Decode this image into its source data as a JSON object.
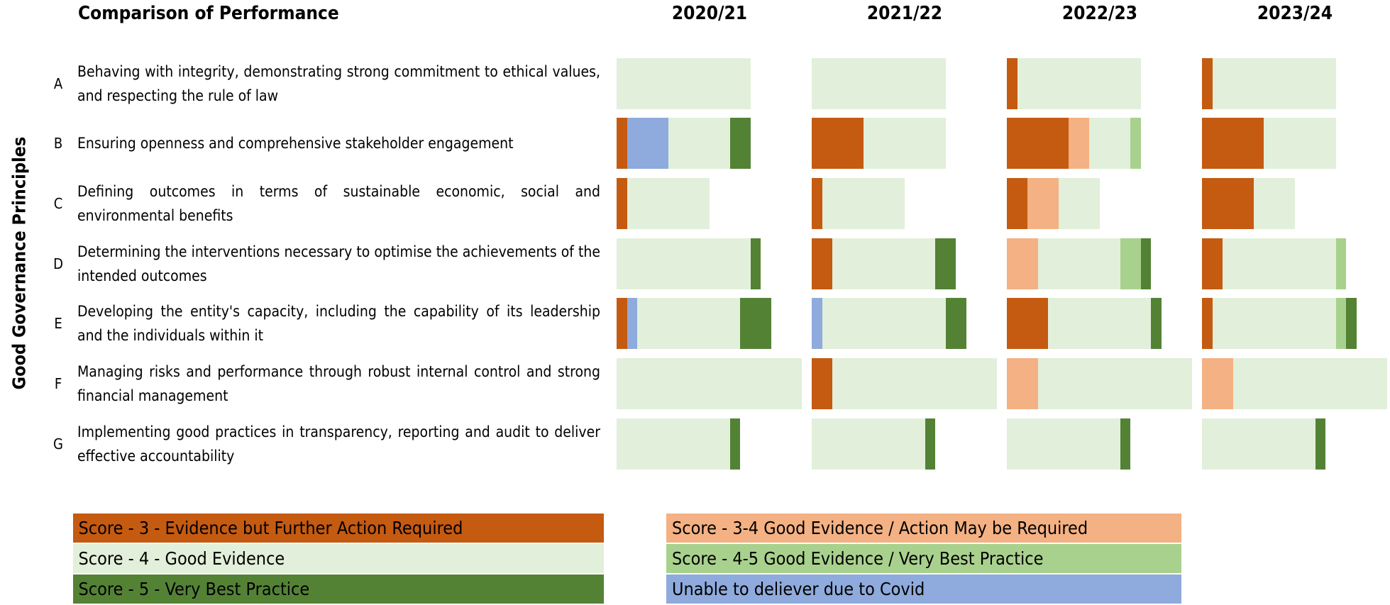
{
  "chart_data": {
    "type": "bar",
    "orientation": "horizontal",
    "stacked": true,
    "title": "Comparison of Performance",
    "y_label": "Good Governance Principles",
    "panels": [
      "2020/21",
      "2021/22",
      "2022/23",
      "2023/24"
    ],
    "categories": [
      "A",
      "B",
      "C",
      "D",
      "E",
      "F",
      "G"
    ],
    "category_descriptions": [
      "Behaving with integrity, demonstrating strong commitment to ethical values, and respecting the rule of law",
      "Ensuring openness and comprehensive stakeholder engagement",
      "Defining outcomes in terms of sustainable economic, social and environmental benefits",
      "Determining the interventions necessary to optimise the achievements of the intended outcomes",
      "Developing the entity's capacity, including the capability of its leadership and the individuals within it",
      "Managing risks and performance through robust internal control and strong financial management",
      "Implementing good practices in transparency, reporting and audit to deliver effective accountability"
    ],
    "series": [
      {
        "name": "Score - 3 - Evidence but Further Action Required",
        "color": "#c55a11",
        "values": [
          [
            0,
            1,
            1,
            0,
            1,
            0,
            0
          ],
          [
            0,
            5,
            1,
            2,
            0,
            2,
            0
          ],
          [
            1,
            6,
            2,
            0,
            4,
            0,
            0
          ],
          [
            1,
            6,
            5,
            2,
            1,
            0,
            0
          ]
        ]
      },
      {
        "name": "Score - 4 - Good Evidence",
        "color": "#e2efda",
        "values": [
          [
            13,
            6,
            8,
            13,
            10,
            18,
            11
          ],
          [
            13,
            8,
            8,
            10,
            12,
            16,
            11
          ],
          [
            12,
            4,
            4,
            8,
            10,
            15,
            11
          ],
          [
            12,
            7,
            4,
            11,
            12,
            15,
            11
          ]
        ]
      },
      {
        "name": "Score - 5 - Very Best Practice",
        "color": "#548235",
        "values": [
          [
            0,
            2,
            0,
            1,
            3,
            0,
            1
          ],
          [
            0,
            0,
            0,
            2,
            2,
            0,
            1
          ],
          [
            0,
            0,
            0,
            1,
            1,
            0,
            1
          ],
          [
            0,
            0,
            0,
            0,
            1,
            0,
            1
          ]
        ]
      },
      {
        "name": "Score - 3-4  Good Evidence / Action May be Required",
        "color": "#f4b183",
        "values": [
          [
            0,
            0,
            0,
            0,
            0,
            0,
            0
          ],
          [
            0,
            0,
            0,
            0,
            0,
            0,
            0
          ],
          [
            0,
            2,
            3,
            3,
            0,
            3,
            0
          ],
          [
            0,
            0,
            0,
            0,
            0,
            3,
            0
          ]
        ]
      },
      {
        "name": "Score - 4-5  Good Evidence / Very Best Practice",
        "color": "#a9d18e",
        "values": [
          [
            0,
            0,
            0,
            0,
            0,
            0,
            0
          ],
          [
            0,
            0,
            0,
            0,
            0,
            0,
            0
          ],
          [
            0,
            1,
            0,
            2,
            0,
            0,
            0
          ],
          [
            0,
            0,
            0,
            1,
            1,
            0,
            0
          ]
        ]
      },
      {
        "name": "Unable to deliever due to Covid",
        "color": "#8faadc",
        "values": [
          [
            0,
            4,
            0,
            0,
            1,
            0,
            0
          ],
          [
            0,
            0,
            0,
            0,
            1,
            0,
            0
          ],
          [
            0,
            0,
            0,
            0,
            0,
            0,
            0
          ],
          [
            0,
            0,
            0,
            0,
            0,
            0,
            0
          ]
        ]
      }
    ]
  }
}
